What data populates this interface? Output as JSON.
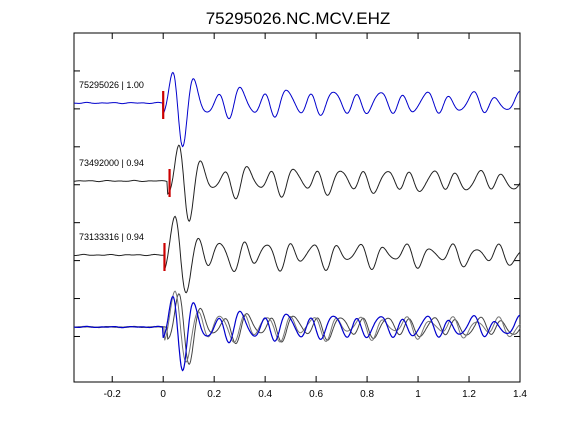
{
  "chart_data": {
    "type": "line",
    "title": "75295026.NC.MCV.EHZ",
    "xlabel": "",
    "ylabel": "",
    "xlim": [
      -0.35,
      1.4
    ],
    "x_ticks": [
      "-0.2",
      "0",
      "0.2",
      "0.4",
      "0.6",
      "0.8",
      "1",
      "1.2",
      "1.4"
    ],
    "x_tick_values": [
      -0.2,
      0,
      0.2,
      0.4,
      0.6,
      0.8,
      1.0,
      1.2,
      1.4
    ],
    "grid": false,
    "pick_color": "#cc0000",
    "traces": [
      {
        "name": "75295026 | 1.00",
        "color": "#0000cc",
        "pick_time": 0.0,
        "onset": 0.0,
        "seed": 1
      },
      {
        "name": "73492000 | 0.94",
        "color": "#222222",
        "pick_time": 0.025,
        "onset": 0.015,
        "seed": 2
      },
      {
        "name": "73133316 | 0.94",
        "color": "#222222",
        "pick_time": 0.005,
        "onset": 0.005,
        "seed": 3
      }
    ],
    "stack": {
      "description_color_primary": "#0000cc",
      "overlay_colors": [
        "#444444",
        "#777777"
      ]
    }
  }
}
